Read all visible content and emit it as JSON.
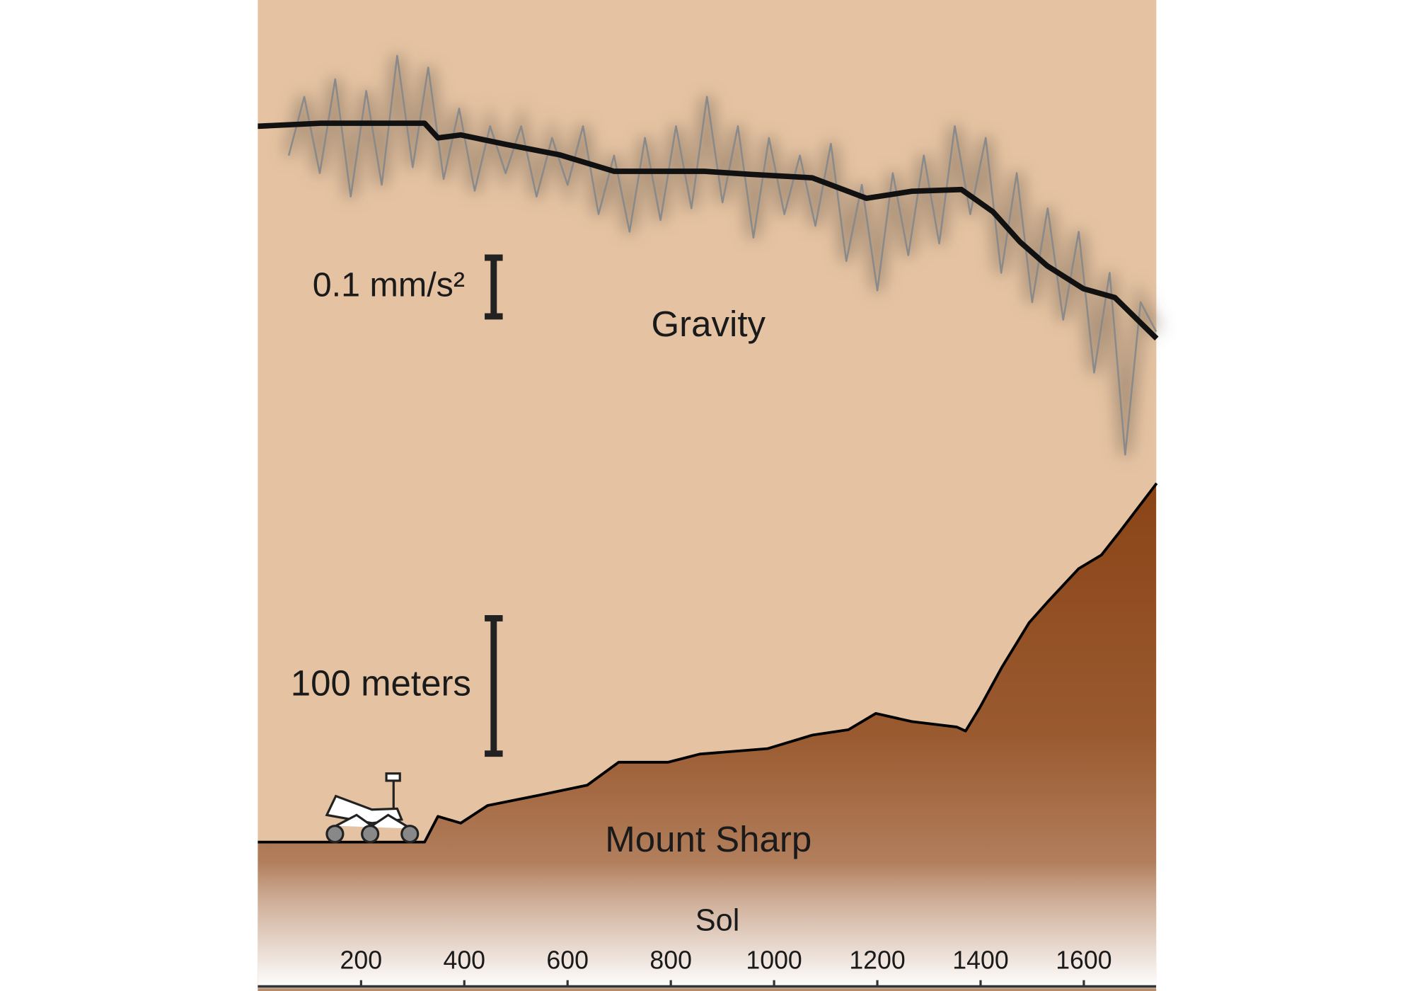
{
  "chart_data": {
    "type": "line",
    "x_label": "Sol",
    "xlim": [
      0,
      1740
    ],
    "xticks": [
      200,
      400,
      600,
      800,
      1000,
      1200,
      1400,
      1600
    ],
    "ylim": [
      -1.474,
      0.215
    ],
    "y2lim": [
      -110,
      622
    ],
    "annotations": [
      "Gravity",
      "Mount Sharp"
    ],
    "scale_bars": [
      {
        "label": "0.1 mm/s²",
        "value": 0.1,
        "axis": "y"
      },
      {
        "label": "100 meters",
        "value": 100,
        "axis": "y2"
      }
    ],
    "series": [
      {
        "kind": "noisy",
        "color": "#8a8a8a",
        "x": [
          60,
          90,
          120,
          150,
          180,
          210,
          240,
          270,
          300,
          330,
          360,
          390,
          420,
          450,
          480,
          510,
          540,
          570,
          600,
          630,
          660,
          690,
          720,
          750,
          780,
          810,
          840,
          870,
          900,
          930,
          960,
          990,
          1020,
          1050,
          1080,
          1110,
          1140,
          1170,
          1200,
          1230,
          1260,
          1290,
          1320,
          1350,
          1380,
          1410,
          1440,
          1470,
          1500,
          1530,
          1560,
          1590,
          1620,
          1650,
          1680,
          1710,
          1740
        ],
        "values": [
          -0.05,
          0.05,
          -0.08,
          0.08,
          -0.12,
          0.06,
          -0.1,
          0.12,
          -0.07,
          0.1,
          -0.09,
          0.03,
          -0.11,
          0.0,
          -0.08,
          0.0,
          -0.12,
          -0.02,
          -0.1,
          0.0,
          -0.15,
          -0.05,
          -0.18,
          -0.02,
          -0.16,
          0.0,
          -0.14,
          0.05,
          -0.13,
          0.0,
          -0.19,
          -0.02,
          -0.15,
          -0.05,
          -0.17,
          -0.03,
          -0.23,
          -0.1,
          -0.28,
          -0.08,
          -0.22,
          -0.05,
          -0.2,
          0.0,
          -0.15,
          -0.02,
          -0.25,
          -0.08,
          -0.3,
          -0.14,
          -0.33,
          -0.18,
          -0.42,
          -0.25,
          -0.56,
          -0.3,
          -0.35
        ]
      },
      {
        "kind": "smooth",
        "color": "#111111",
        "x": [
          3,
          122,
          323,
          349,
          393,
          480,
          585,
          690,
          865,
          952,
          1074,
          1179,
          1267,
          1363,
          1424,
          1476,
          1529,
          1599,
          1660,
          1741
        ],
        "values": [
          0,
          0.005,
          0.005,
          -0.02,
          -0.015,
          -0.031,
          -0.049,
          -0.077,
          -0.077,
          -0.082,
          -0.088,
          -0.123,
          -0.111,
          -0.108,
          -0.146,
          -0.197,
          -0.238,
          -0.277,
          -0.292,
          -0.362
        ]
      },
      {
        "kind": "area",
        "axis": "y2",
        "color": "#8f4a1c",
        "x": [
          3,
          122,
          323,
          349,
          393,
          445,
          550,
          638,
          699,
          795,
          856,
          987,
          1074,
          1144,
          1197,
          1267,
          1354,
          1371,
          1398,
          1441,
          1494,
          1529,
          1590,
          1634,
          1669,
          1741
        ],
        "values": [
          0,
          0,
          0,
          19,
          14,
          27,
          35,
          42,
          59,
          59,
          65,
          69,
          79,
          83,
          95,
          89,
          85,
          82,
          99,
          129,
          162,
          177,
          202,
          212,
          229,
          265
        ]
      }
    ]
  }
}
